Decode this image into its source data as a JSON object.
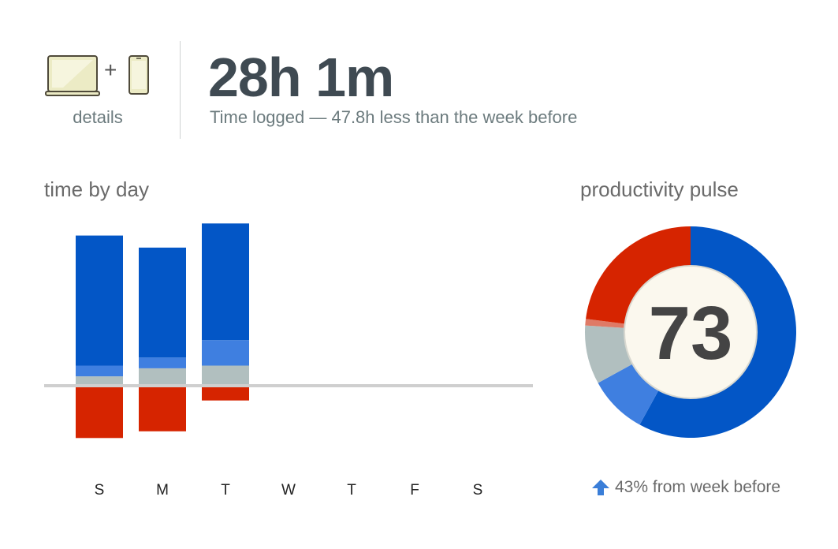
{
  "header": {
    "details_label": "details",
    "separator": "+",
    "total_time": "28h 1m",
    "subtitle": "Time logged — 47.8h less than the week before",
    "device_icons": [
      "laptop-icon",
      "phone-icon"
    ]
  },
  "time_by_day": {
    "title": "time by day"
  },
  "pulse": {
    "title": "productivity pulse",
    "score": "73",
    "change_text": "43% from week before",
    "change_icon": "arrow-up-icon"
  },
  "colors": {
    "very_productive": "#0356c6",
    "productive": "#3f7fe0",
    "neutral": "#b1bfbf",
    "distracting": "#d62400",
    "baseline": "#cfcfcf",
    "pulse_center": "#fbf8ee"
  },
  "chart_data": [
    {
      "type": "bar",
      "stacked": true,
      "title": "time by day",
      "categories": [
        "S",
        "M",
        "T",
        "W",
        "T",
        "F",
        "S"
      ],
      "ylim": [
        -5,
        12.5
      ],
      "series": [
        {
          "values": [
            0.7,
            1.3,
            1.5,
            0,
            0,
            0,
            0
          ],
          "color": "#b1bfbf"
        },
        {
          "values": [
            0.8,
            0.8,
            1.9,
            0,
            0,
            0,
            0
          ],
          "color": "#3f7fe0"
        },
        {
          "values": [
            9.7,
            8.2,
            8.7,
            0,
            0,
            0,
            0
          ],
          "color": "#0356c6"
        },
        {
          "values": [
            -3.9,
            -3.4,
            -1.1,
            0,
            0,
            0,
            0
          ],
          "color": "#d62400"
        }
      ]
    },
    {
      "type": "pie",
      "title": "productivity pulse",
      "slices": [
        {
          "value": 58,
          "color": "#0356c6"
        },
        {
          "value": 9,
          "color": "#3f7fe0"
        },
        {
          "value": 9,
          "color": "#b1bfbf"
        },
        {
          "value": 1,
          "color": "#df7a66"
        },
        {
          "value": 23,
          "color": "#d62400"
        }
      ]
    }
  ]
}
